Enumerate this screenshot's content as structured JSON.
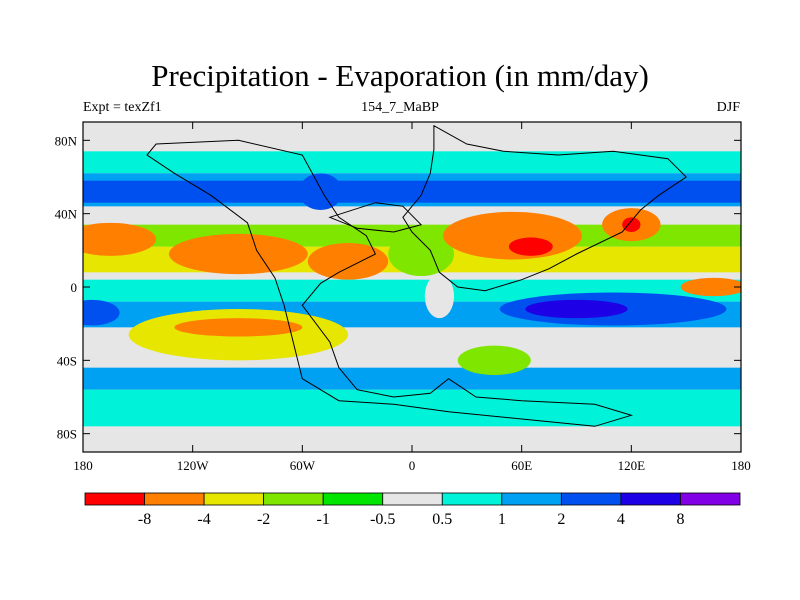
{
  "title": "Precipitation - Evaporation (in mm/day)",
  "left_label": "Expt = texZf1",
  "center_label": "154_7_MaBP",
  "right_label": "DJF",
  "x_ticks": [
    {
      "lon": -180,
      "label": "180"
    },
    {
      "lon": -120,
      "label": "120W"
    },
    {
      "lon": -60,
      "label": "60W"
    },
    {
      "lon": 0,
      "label": "0"
    },
    {
      "lon": 60,
      "label": "60E"
    },
    {
      "lon": 120,
      "label": "120E"
    },
    {
      "lon": 180,
      "label": "180"
    }
  ],
  "y_ticks": [
    {
      "lat": 80,
      "label": "80N"
    },
    {
      "lat": 40,
      "label": "40N"
    },
    {
      "lat": 0,
      "label": "0"
    },
    {
      "lat": -40,
      "label": "40S"
    },
    {
      "lat": -80,
      "label": "80S"
    }
  ],
  "lat_range": [
    -90,
    90
  ],
  "lon_range": [
    -180,
    180
  ],
  "colorbar": {
    "colors": [
      "#ff0000",
      "#ff7f00",
      "#e6e600",
      "#7fe600",
      "#00e600",
      "#e6e6e6",
      "#00f2d9",
      "#00a0f2",
      "#0050f0",
      "#1e00e6",
      "#8200e6"
    ],
    "labels": [
      "-8",
      "-4",
      "-2",
      "-1",
      "-0.5",
      "0.5",
      "1",
      "2",
      "4",
      "8"
    ]
  },
  "field": {
    "background": "#e6e6e6",
    "bands": [
      {
        "lat": [
          62,
          74
        ],
        "color": "#00f2d9"
      },
      {
        "lat": [
          44,
          62
        ],
        "color": "#00a0f2"
      },
      {
        "lat": [
          46,
          58
        ],
        "color": "#0050f0"
      },
      {
        "lat": [
          22,
          34
        ],
        "color": "#7fe600"
      },
      {
        "lat": [
          8,
          22
        ],
        "color": "#e6e600"
      },
      {
        "lat": [
          -8,
          4
        ],
        "color": "#00f2d9"
      },
      {
        "lat": [
          -22,
          -8
        ],
        "color": "#00a0f2"
      },
      {
        "lat": [
          -44,
          -56
        ],
        "color": "#00a0f2"
      },
      {
        "lat": [
          -56,
          -76
        ],
        "color": "#00f2d9"
      }
    ],
    "blobs": [
      {
        "lon": -165,
        "lat": 26,
        "rlon": 25,
        "rlat": 9,
        "color": "#ff7f00"
      },
      {
        "lon": -95,
        "lat": 18,
        "rlon": 38,
        "rlat": 11,
        "color": "#ff7f00"
      },
      {
        "lon": -95,
        "lat": -26,
        "rlon": 60,
        "rlat": 14,
        "color": "#e6e600"
      },
      {
        "lon": -95,
        "lat": -22,
        "rlon": 35,
        "rlat": 5,
        "color": "#ff7f00"
      },
      {
        "lon": -35,
        "lat": 14,
        "rlon": 22,
        "rlat": 10,
        "color": "#ff7f00"
      },
      {
        "lon": 5,
        "lat": 18,
        "rlon": 18,
        "rlat": 12,
        "color": "#7fe600"
      },
      {
        "lon": 15,
        "lat": -5,
        "rlon": 8,
        "rlat": 12,
        "color": "#e6e6e6"
      },
      {
        "lon": 55,
        "lat": 28,
        "rlon": 38,
        "rlat": 13,
        "color": "#ff7f00"
      },
      {
        "lon": 65,
        "lat": 22,
        "rlon": 12,
        "rlat": 5,
        "color": "#ff0000"
      },
      {
        "lon": 120,
        "lat": 34,
        "rlon": 16,
        "rlat": 9,
        "color": "#ff7f00"
      },
      {
        "lon": 120,
        "lat": 34,
        "rlon": 5,
        "rlat": 4,
        "color": "#ff0000"
      },
      {
        "lon": 110,
        "lat": -12,
        "rlon": 62,
        "rlat": 9,
        "color": "#0050f0"
      },
      {
        "lon": 90,
        "lat": -12,
        "rlon": 28,
        "rlat": 5,
        "color": "#1e00e6"
      },
      {
        "lon": -175,
        "lat": -14,
        "rlon": 15,
        "rlat": 7,
        "color": "#0050f0"
      },
      {
        "lon": 165,
        "lat": 0,
        "rlon": 18,
        "rlat": 5,
        "color": "#ff7f00"
      },
      {
        "lon": 45,
        "lat": -40,
        "rlon": 20,
        "rlat": 8,
        "color": "#7fe600"
      },
      {
        "lon": -50,
        "lat": 52,
        "rlon": 12,
        "rlat": 10,
        "color": "#0050f0"
      }
    ]
  }
}
